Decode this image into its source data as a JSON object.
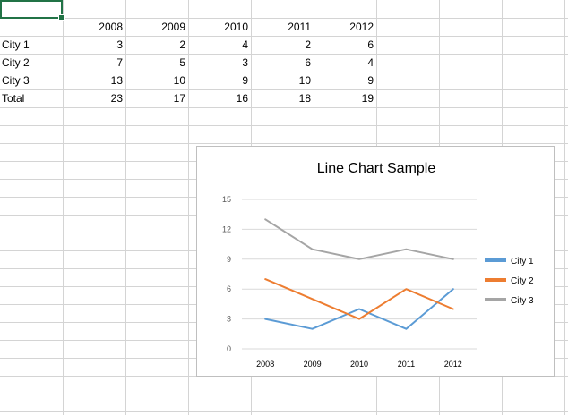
{
  "sheet": {
    "header_row": [
      "",
      "2008",
      "2009",
      "2010",
      "2011",
      "2012"
    ],
    "rows": [
      {
        "label": "City 1",
        "values": [
          "3",
          "2",
          "4",
          "2",
          "6"
        ]
      },
      {
        "label": "City 2",
        "values": [
          "7",
          "5",
          "3",
          "6",
          "4"
        ]
      },
      {
        "label": "City 3",
        "values": [
          "13",
          "10",
          "9",
          "10",
          "9"
        ]
      },
      {
        "label": "Total",
        "values": [
          "23",
          "17",
          "16",
          "18",
          "19"
        ]
      }
    ]
  },
  "chart_data": {
    "type": "line",
    "title": "Line Chart Sample",
    "categories": [
      "2008",
      "2009",
      "2010",
      "2011",
      "2012"
    ],
    "series": [
      {
        "name": "City 1",
        "values": [
          3,
          2,
          4,
          2,
          6
        ],
        "color": "#5b9bd5"
      },
      {
        "name": "City 2",
        "values": [
          7,
          5,
          3,
          6,
          4
        ],
        "color": "#ed7d31"
      },
      {
        "name": "City 3",
        "values": [
          13,
          10,
          9,
          10,
          9
        ],
        "color": "#a5a5a5"
      }
    ],
    "ylim": [
      0,
      15
    ],
    "yticks": [
      0,
      3,
      6,
      9,
      12,
      15
    ],
    "xlabel": "",
    "ylabel": "",
    "grid": true,
    "legend": "right"
  },
  "colors": {
    "gridline": "#d4d4d4",
    "chart_gridline": "#d9d9d9",
    "selection": "#217346"
  }
}
